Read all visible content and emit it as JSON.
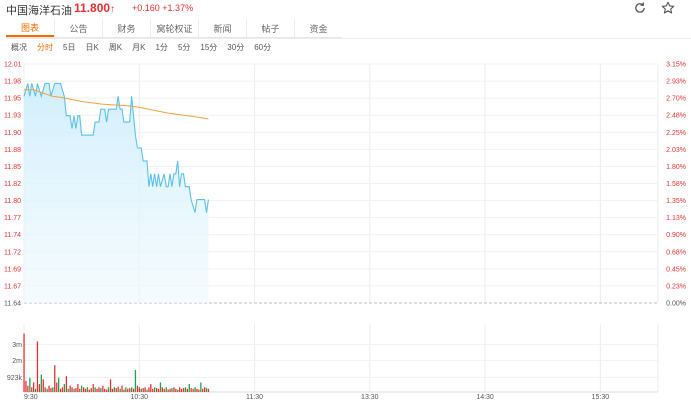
{
  "header": {
    "stock_name": "中国海洋石油",
    "price": "11.800",
    "price_arrow": "↑",
    "change": "+0.160",
    "change_pct": "+1.37%",
    "refresh_icon": "refresh-icon",
    "favorite_icon": "star-icon"
  },
  "tabs": [
    {
      "label": "图表",
      "active": true
    },
    {
      "label": "公告",
      "active": false
    },
    {
      "label": "财务",
      "active": false
    },
    {
      "label": "窝轮权证",
      "active": false
    },
    {
      "label": "新闻",
      "active": false
    },
    {
      "label": "帖子",
      "active": false
    },
    {
      "label": "资金",
      "active": false
    }
  ],
  "periods": [
    {
      "label": "概况",
      "active": false
    },
    {
      "label": "分时",
      "active": true
    },
    {
      "label": "5日",
      "active": false
    },
    {
      "label": "日K",
      "active": false
    },
    {
      "label": "周K",
      "active": false
    },
    {
      "label": "月K",
      "active": false
    },
    {
      "label": "1分",
      "active": false
    },
    {
      "label": "5分",
      "active": false
    },
    {
      "label": "15分",
      "active": false
    },
    {
      "label": "30分",
      "active": false
    },
    {
      "label": "60分",
      "active": false
    }
  ],
  "colors": {
    "up": "#e93030",
    "down": "#1aa34a",
    "price_line": "#5bc0eb",
    "avg_line": "#f0a040",
    "accent": "#ff6a00"
  },
  "chart_data": {
    "type": "line",
    "prev_close": 11.64,
    "ylim": [
      11.64,
      12.01
    ],
    "y_ticks_left": [
      "12.01",
      "11.98",
      "11.95",
      "11.93",
      "11.90",
      "11.88",
      "11.85",
      "11.82",
      "11.80",
      "11.77",
      "11.74",
      "11.72",
      "11.69",
      "11.67",
      "11.64"
    ],
    "y_ticks_right": [
      "3.15%",
      "2.93%",
      "2.70%",
      "2.48%",
      "2.25%",
      "2.03%",
      "1.80%",
      "1.58%",
      "1.35%",
      "1.13%",
      "0.90%",
      "0.68%",
      "0.45%",
      "0.23%",
      "0.00%"
    ],
    "x_ticks": [
      "9:30",
      "10:30",
      "11:30",
      "13:30",
      "14:30",
      "15:30"
    ],
    "x_tick_minutes": [
      0,
      60,
      120,
      180,
      240,
      300
    ],
    "x_total_minutes": 330,
    "series": [
      {
        "values": [
          [
            0,
            11.96
          ],
          [
            2,
            11.98
          ],
          [
            3,
            11.96
          ],
          [
            4,
            11.98
          ],
          [
            6,
            11.96
          ],
          [
            7,
            11.98
          ],
          [
            9,
            11.96
          ],
          [
            11,
            11.98
          ],
          [
            13,
            11.98
          ],
          [
            14,
            11.96
          ],
          [
            16,
            11.98
          ],
          [
            19,
            11.98
          ],
          [
            21,
            11.96
          ],
          [
            22,
            11.93
          ],
          [
            24,
            11.93
          ],
          [
            25,
            11.91
          ],
          [
            26,
            11.93
          ],
          [
            27,
            11.91
          ],
          [
            28,
            11.93
          ],
          [
            29,
            11.93
          ],
          [
            30,
            11.9
          ],
          [
            33,
            11.9
          ],
          [
            36,
            11.9
          ],
          [
            37,
            11.92
          ],
          [
            38,
            11.92
          ],
          [
            39,
            11.92
          ],
          [
            40,
            11.94
          ],
          [
            42,
            11.94
          ],
          [
            43,
            11.92
          ],
          [
            44,
            11.94
          ],
          [
            46,
            11.94
          ],
          [
            48,
            11.94
          ],
          [
            49,
            11.96
          ],
          [
            50,
            11.94
          ],
          [
            51,
            11.94
          ],
          [
            52,
            11.92
          ],
          [
            55,
            11.92
          ],
          [
            56,
            11.96
          ],
          [
            58,
            11.9
          ],
          [
            59,
            11.88
          ],
          [
            61,
            11.88
          ],
          [
            62,
            11.86
          ],
          [
            64,
            11.86
          ],
          [
            65,
            11.82
          ],
          [
            66,
            11.84
          ],
          [
            67,
            11.82
          ],
          [
            68,
            11.84
          ],
          [
            69,
            11.82
          ],
          [
            70,
            11.84
          ],
          [
            71,
            11.82
          ],
          [
            73,
            11.84
          ],
          [
            74,
            11.82
          ],
          [
            75,
            11.82
          ],
          [
            76,
            11.84
          ],
          [
            77,
            11.82
          ],
          [
            78,
            11.84
          ],
          [
            79,
            11.84
          ],
          [
            80,
            11.86
          ],
          [
            81,
            11.82
          ],
          [
            82,
            11.84
          ],
          [
            83,
            11.84
          ],
          [
            84,
            11.82
          ],
          [
            86,
            11.82
          ],
          [
            87,
            11.8
          ],
          [
            89,
            11.78
          ],
          [
            90,
            11.8
          ],
          [
            94,
            11.8
          ],
          [
            95,
            11.78
          ],
          [
            96,
            11.8
          ]
        ]
      },
      {
        "values": [
          [
            0,
            11.97
          ],
          [
            5,
            11.97
          ],
          [
            10,
            11.965
          ],
          [
            15,
            11.96
          ],
          [
            20,
            11.958
          ],
          [
            25,
            11.955
          ],
          [
            30,
            11.952
          ],
          [
            35,
            11.95
          ],
          [
            40,
            11.948
          ],
          [
            45,
            11.947
          ],
          [
            50,
            11.946
          ],
          [
            55,
            11.945
          ],
          [
            60,
            11.943
          ],
          [
            65,
            11.94
          ],
          [
            70,
            11.937
          ],
          [
            75,
            11.934
          ],
          [
            80,
            11.932
          ],
          [
            85,
            11.93
          ],
          [
            90,
            11.928
          ],
          [
            96,
            11.925
          ]
        ]
      }
    ],
    "volume": {
      "y_ticks": [
        "3m",
        "2m",
        "923k"
      ],
      "y_tick_values": [
        3000000,
        2000000,
        923000
      ],
      "max": 3800000,
      "bars": [
        [
          0,
          3700000,
          "up"
        ],
        [
          1,
          700000,
          "up"
        ],
        [
          2,
          400000,
          "up"
        ],
        [
          3,
          900000,
          "down"
        ],
        [
          4,
          300000,
          "up"
        ],
        [
          5,
          600000,
          "up"
        ],
        [
          6,
          200000,
          "down"
        ],
        [
          7,
          3200000,
          "up"
        ],
        [
          8,
          500000,
          "up"
        ],
        [
          9,
          1100000,
          "down"
        ],
        [
          10,
          800000,
          "up"
        ],
        [
          11,
          300000,
          "up"
        ],
        [
          12,
          200000,
          "down"
        ],
        [
          13,
          400000,
          "up"
        ],
        [
          14,
          250000,
          "up"
        ],
        [
          15,
          300000,
          "down"
        ],
        [
          16,
          1700000,
          "up"
        ],
        [
          17,
          600000,
          "up"
        ],
        [
          18,
          900000,
          "down"
        ],
        [
          19,
          200000,
          "up"
        ],
        [
          20,
          300000,
          "up"
        ],
        [
          21,
          500000,
          "down"
        ],
        [
          22,
          1000000,
          "up"
        ],
        [
          23,
          200000,
          "down"
        ],
        [
          24,
          400000,
          "up"
        ],
        [
          25,
          300000,
          "up"
        ],
        [
          26,
          200000,
          "down"
        ],
        [
          27,
          250000,
          "up"
        ],
        [
          28,
          500000,
          "up"
        ],
        [
          29,
          200000,
          "up"
        ],
        [
          30,
          400000,
          "down"
        ],
        [
          31,
          300000,
          "up"
        ],
        [
          32,
          200000,
          "up"
        ],
        [
          33,
          300000,
          "down"
        ],
        [
          34,
          150000,
          "up"
        ],
        [
          35,
          250000,
          "up"
        ],
        [
          36,
          500000,
          "up"
        ],
        [
          37,
          300000,
          "down"
        ],
        [
          38,
          200000,
          "up"
        ],
        [
          39,
          300000,
          "up"
        ],
        [
          40,
          250000,
          "down"
        ],
        [
          41,
          400000,
          "up"
        ],
        [
          42,
          200000,
          "up"
        ],
        [
          43,
          150000,
          "up"
        ],
        [
          44,
          300000,
          "down"
        ],
        [
          45,
          800000,
          "up"
        ],
        [
          46,
          200000,
          "up"
        ],
        [
          47,
          300000,
          "down"
        ],
        [
          48,
          250000,
          "up"
        ],
        [
          49,
          350000,
          "up"
        ],
        [
          50,
          200000,
          "down"
        ],
        [
          51,
          400000,
          "up"
        ],
        [
          52,
          150000,
          "up"
        ],
        [
          53,
          300000,
          "down"
        ],
        [
          54,
          200000,
          "up"
        ],
        [
          55,
          250000,
          "up"
        ],
        [
          56,
          300000,
          "down"
        ],
        [
          57,
          200000,
          "up"
        ],
        [
          58,
          1400000,
          "down"
        ],
        [
          59,
          400000,
          "up"
        ],
        [
          60,
          300000,
          "up"
        ],
        [
          61,
          200000,
          "down"
        ],
        [
          62,
          250000,
          "up"
        ],
        [
          63,
          300000,
          "up"
        ],
        [
          64,
          150000,
          "down"
        ],
        [
          65,
          300000,
          "up"
        ],
        [
          66,
          500000,
          "up"
        ],
        [
          67,
          200000,
          "up"
        ],
        [
          68,
          300000,
          "down"
        ],
        [
          69,
          250000,
          "up"
        ],
        [
          70,
          200000,
          "up"
        ],
        [
          71,
          600000,
          "down"
        ],
        [
          72,
          300000,
          "up"
        ],
        [
          73,
          200000,
          "up"
        ],
        [
          74,
          300000,
          "down"
        ],
        [
          75,
          150000,
          "up"
        ],
        [
          76,
          200000,
          "up"
        ],
        [
          77,
          250000,
          "down"
        ],
        [
          78,
          300000,
          "up"
        ],
        [
          79,
          200000,
          "up"
        ],
        [
          80,
          150000,
          "down"
        ],
        [
          81,
          300000,
          "up"
        ],
        [
          82,
          200000,
          "up"
        ],
        [
          83,
          250000,
          "up"
        ],
        [
          84,
          300000,
          "down"
        ],
        [
          85,
          200000,
          "up"
        ],
        [
          86,
          500000,
          "down"
        ],
        [
          87,
          250000,
          "up"
        ],
        [
          88,
          200000,
          "up"
        ],
        [
          89,
          300000,
          "down"
        ],
        [
          90,
          200000,
          "up"
        ],
        [
          91,
          150000,
          "up"
        ],
        [
          92,
          600000,
          "down"
        ],
        [
          93,
          200000,
          "up"
        ],
        [
          94,
          300000,
          "up"
        ],
        [
          95,
          250000,
          "down"
        ],
        [
          96,
          200000,
          "up"
        ]
      ]
    }
  }
}
